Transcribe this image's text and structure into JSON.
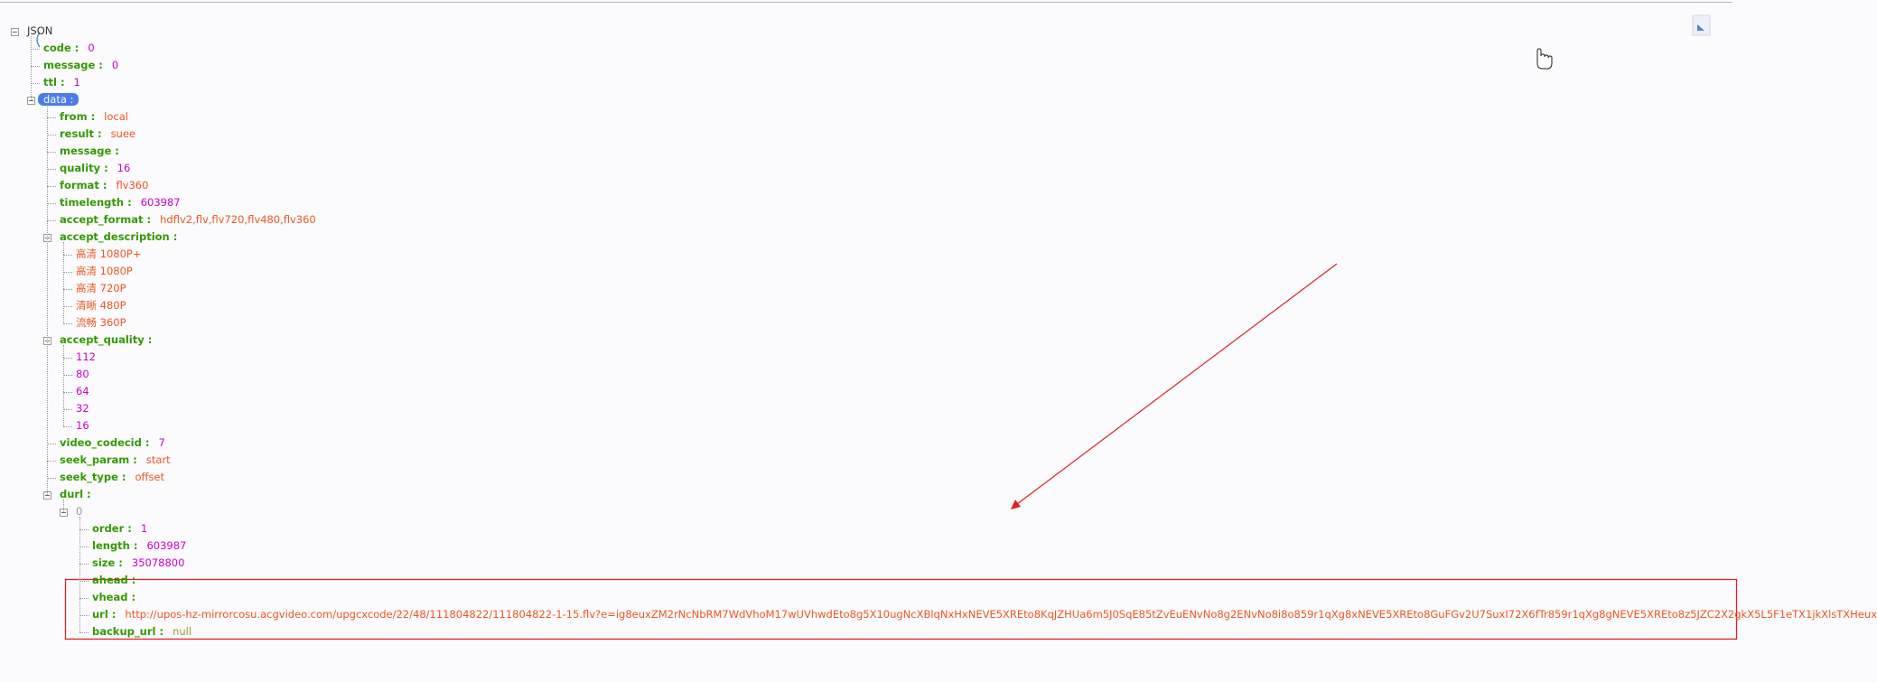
{
  "tree": {
    "label": "JSON",
    "children": [
      {
        "key": "code",
        "value": 0
      },
      {
        "key": "message",
        "value": 0
      },
      {
        "key": "ttl",
        "value": 1
      },
      {
        "key": "data",
        "selected": true,
        "children": [
          {
            "key": "from",
            "value": "local"
          },
          {
            "key": "result",
            "value": "suee"
          },
          {
            "key": "message"
          },
          {
            "key": "quality",
            "value": 16
          },
          {
            "key": "format",
            "value": "flv360"
          },
          {
            "key": "timelength",
            "value": 603987
          },
          {
            "key": "accept_format",
            "value": "hdflv2,flv,flv720,flv480,flv360"
          },
          {
            "key": "accept_description",
            "children": [
              {
                "value": "高清 1080P+"
              },
              {
                "value": "高清 1080P"
              },
              {
                "value": "高清 720P"
              },
              {
                "value": "清晰 480P"
              },
              {
                "value": "流畅 360P"
              }
            ]
          },
          {
            "key": "accept_quality",
            "children": [
              {
                "value": 112
              },
              {
                "value": 80
              },
              {
                "value": 64
              },
              {
                "value": 32
              },
              {
                "value": 16
              }
            ]
          },
          {
            "key": "video_codecid",
            "value": 7
          },
          {
            "key": "seek_param",
            "value": "start"
          },
          {
            "key": "seek_type",
            "value": "offset"
          },
          {
            "key": "durl",
            "children": [
              {
                "key": "0",
                "children": [
                  {
                    "key": "order",
                    "value": 1
                  },
                  {
                    "key": "length",
                    "value": 603987
                  },
                  {
                    "key": "size",
                    "value": 35078800
                  },
                  {
                    "key": "ahead"
                  },
                  {
                    "key": "vhead"
                  },
                  {
                    "key": "url",
                    "value": "http://upos-hz-mirrorcosu.acgvideo.com/upgcxcode/22/48/111804822/111804822-1-15.flv?e=ig8euxZM2rNcNbRM7WdVhoM17wUVhwdEto8g5X10ugNcXBlqNxHxNEVE5XREto8KqJZHUa6m5J0SqE85tZvEuENvNo8g2ENvNo8i8o859r1qXg8xNEVE5XREto8GuFGv2U7SuxI72X6fTr859r1qXg8gNEVE5XREto8z5JZC2X2gkX5L5F1eTX1jkXlsTXHeux"
                  },
                  {
                    "key": "backup_url",
                    "value": null
                  }
                ]
              }
            ]
          }
        ]
      }
    ]
  }
}
